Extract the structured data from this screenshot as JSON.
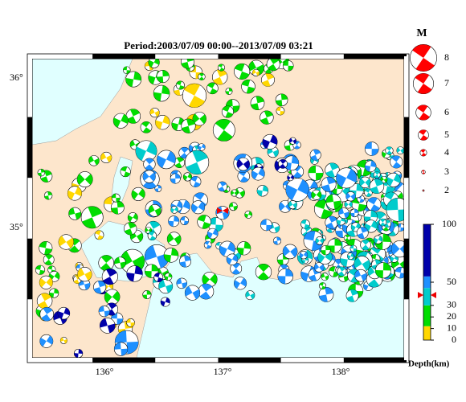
{
  "title": "Period:2003/07/09 00:00--2013/07/09 03:21",
  "lat_labels": [
    "36°",
    "35°"
  ],
  "lon_labels": [
    "136°",
    "137°",
    "138°"
  ],
  "legend": {
    "title": "M",
    "magnitudes": [
      8,
      7,
      6,
      5,
      4,
      3,
      2
    ]
  },
  "depth_scale": {
    "ticks": [
      100,
      50,
      30,
      20,
      10,
      0
    ],
    "label": "Depth(km)"
  }
}
